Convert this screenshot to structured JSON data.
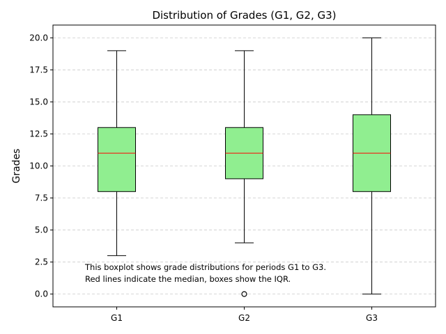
{
  "chart_data": {
    "type": "boxplot",
    "title": "Distribution of Grades (G1, G2, G3)",
    "xlabel": "",
    "ylabel": "Grades",
    "ylim": [
      -1,
      21
    ],
    "yticks": [
      0.0,
      2.5,
      5.0,
      7.5,
      10.0,
      12.5,
      15.0,
      17.5,
      20.0
    ],
    "ytick_labels": [
      "0.0",
      "2.5",
      "5.0",
      "7.5",
      "10.0",
      "12.5",
      "15.0",
      "17.5",
      "20.0"
    ],
    "grid": "y, dashed",
    "categories": [
      "G1",
      "G2",
      "G3"
    ],
    "boxes": [
      {
        "name": "G1",
        "whisker_low": 3,
        "q1": 8,
        "median": 11,
        "q3": 13,
        "whisker_high": 19,
        "outliers": []
      },
      {
        "name": "G2",
        "whisker_low": 4,
        "q1": 9,
        "median": 11,
        "q3": 13,
        "whisker_high": 19,
        "outliers": [
          0
        ]
      },
      {
        "name": "G3",
        "whisker_low": 0,
        "q1": 8,
        "median": 11,
        "q3": 14,
        "whisker_high": 20,
        "outliers": []
      }
    ],
    "annotation": [
      "This boxplot shows grade distributions for periods G1 to G3.",
      "Red lines indicate the median, boxes show the IQR."
    ],
    "colors": {
      "box_fill": "#90ee90",
      "median": "#ff0000",
      "edge": "#000000",
      "grid": "#cccccc"
    }
  }
}
